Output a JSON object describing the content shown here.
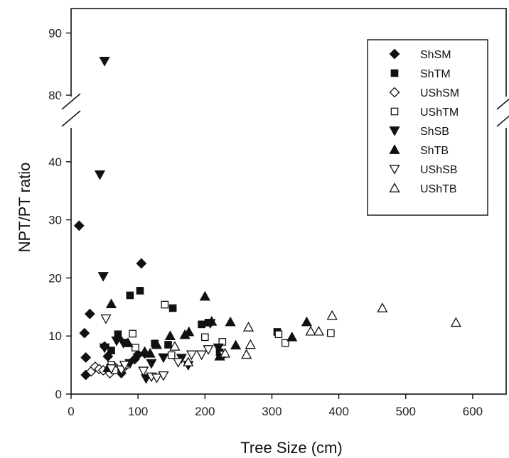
{
  "chart_data": {
    "type": "scatter",
    "xlabel": "Tree Size (cm)",
    "ylabel": "NPT/PT ratio",
    "xlim": [
      0,
      650
    ],
    "ylim": [
      0,
      92
    ],
    "axis_break": {
      "between": [
        45,
        77
      ]
    },
    "x_ticks": [
      0,
      100,
      200,
      300,
      400,
      500,
      600
    ],
    "y_ticks": [
      0,
      10,
      20,
      30,
      40,
      80,
      90
    ],
    "legend_position": "top-right",
    "grid": false,
    "series": [
      {
        "name": "ShSM",
        "marker": "diamond",
        "filled": true,
        "points": [
          [
            12,
            29
          ],
          [
            20,
            10.5
          ],
          [
            22,
            6.3
          ],
          [
            22,
            3.3
          ],
          [
            28,
            13.8
          ],
          [
            50,
            8.2
          ],
          [
            55,
            6.5
          ],
          [
            75,
            3.6
          ],
          [
            95,
            6
          ],
          [
            100,
            6.8
          ],
          [
            105,
            22.5
          ],
          [
            110,
            7
          ]
        ]
      },
      {
        "name": "ShTM",
        "marker": "square",
        "filled": true,
        "points": [
          [
            60,
            7.5
          ],
          [
            70,
            10.3
          ],
          [
            88,
            17
          ],
          [
            103,
            17.8
          ],
          [
            125,
            8.7
          ],
          [
            145,
            8.5
          ],
          [
            152,
            14.8
          ],
          [
            195,
            12
          ],
          [
            205,
            12.3
          ],
          [
            222,
            7.2
          ],
          [
            308,
            10.7
          ]
        ]
      },
      {
        "name": "UShSM",
        "marker": "diamond",
        "filled": false,
        "points": [
          [
            30,
            3.9
          ],
          [
            36,
            4.7
          ],
          [
            42,
            4.3
          ],
          [
            48,
            4.1
          ],
          [
            58,
            3.6
          ],
          [
            64,
            4.8
          ],
          [
            78,
            4.5
          ]
        ]
      },
      {
        "name": "UShTM",
        "marker": "square",
        "filled": false,
        "points": [
          [
            60,
            5
          ],
          [
            65,
            4.1
          ],
          [
            80,
            5
          ],
          [
            92,
            10.4
          ],
          [
            96,
            8
          ],
          [
            140,
            15.4
          ],
          [
            150,
            6.7
          ],
          [
            200,
            9.8
          ],
          [
            226,
            9
          ],
          [
            225,
            6.8
          ],
          [
            310,
            10.3
          ],
          [
            320,
            8.8
          ],
          [
            388,
            10.5
          ]
        ]
      },
      {
        "name": "ShSB",
        "marker": "triangle-down",
        "filled": true,
        "points": [
          [
            50,
            85.5
          ],
          [
            43,
            37.8
          ],
          [
            48,
            20.3
          ],
          [
            50,
            8
          ],
          [
            68,
            9.2
          ],
          [
            78,
            8.8
          ],
          [
            88,
            5.3
          ],
          [
            112,
            2.7
          ],
          [
            120,
            5.3
          ],
          [
            138,
            6.3
          ],
          [
            165,
            6.2
          ],
          [
            175,
            5
          ],
          [
            208,
            12.2
          ],
          [
            220,
            8
          ]
        ]
      },
      {
        "name": "ShTB",
        "marker": "triangle-up",
        "filled": true,
        "points": [
          [
            55,
            4.5
          ],
          [
            60,
            15.5
          ],
          [
            72,
            9.8
          ],
          [
            85,
            8.8
          ],
          [
            110,
            7.3
          ],
          [
            118,
            7
          ],
          [
            128,
            8.5
          ],
          [
            148,
            10
          ],
          [
            170,
            10.2
          ],
          [
            176,
            10.7
          ],
          [
            200,
            16.8
          ],
          [
            210,
            12.5
          ],
          [
            222,
            6.5
          ],
          [
            238,
            12.4
          ],
          [
            246,
            8.4
          ],
          [
            330,
            9.8
          ],
          [
            352,
            12.4
          ]
        ]
      },
      {
        "name": "UShSB",
        "marker": "triangle-down",
        "filled": false,
        "points": [
          [
            52,
            13
          ],
          [
            60,
            4.4
          ],
          [
            75,
            4.2
          ],
          [
            80,
            5
          ],
          [
            108,
            4
          ],
          [
            120,
            3
          ],
          [
            128,
            2.8
          ],
          [
            138,
            3.2
          ],
          [
            160,
            5.5
          ],
          [
            180,
            6.8
          ],
          [
            195,
            6.8
          ],
          [
            205,
            7.7
          ]
        ]
      },
      {
        "name": "UShTB",
        "marker": "triangle-up",
        "filled": false,
        "points": [
          [
            155,
            8.2
          ],
          [
            175,
            5.5
          ],
          [
            230,
            7
          ],
          [
            262,
            6.8
          ],
          [
            265,
            11.5
          ],
          [
            268,
            8.5
          ],
          [
            358,
            10.8
          ],
          [
            370,
            10.8
          ],
          [
            390,
            13.5
          ],
          [
            465,
            14.8
          ],
          [
            575,
            12.3
          ]
        ]
      }
    ]
  }
}
